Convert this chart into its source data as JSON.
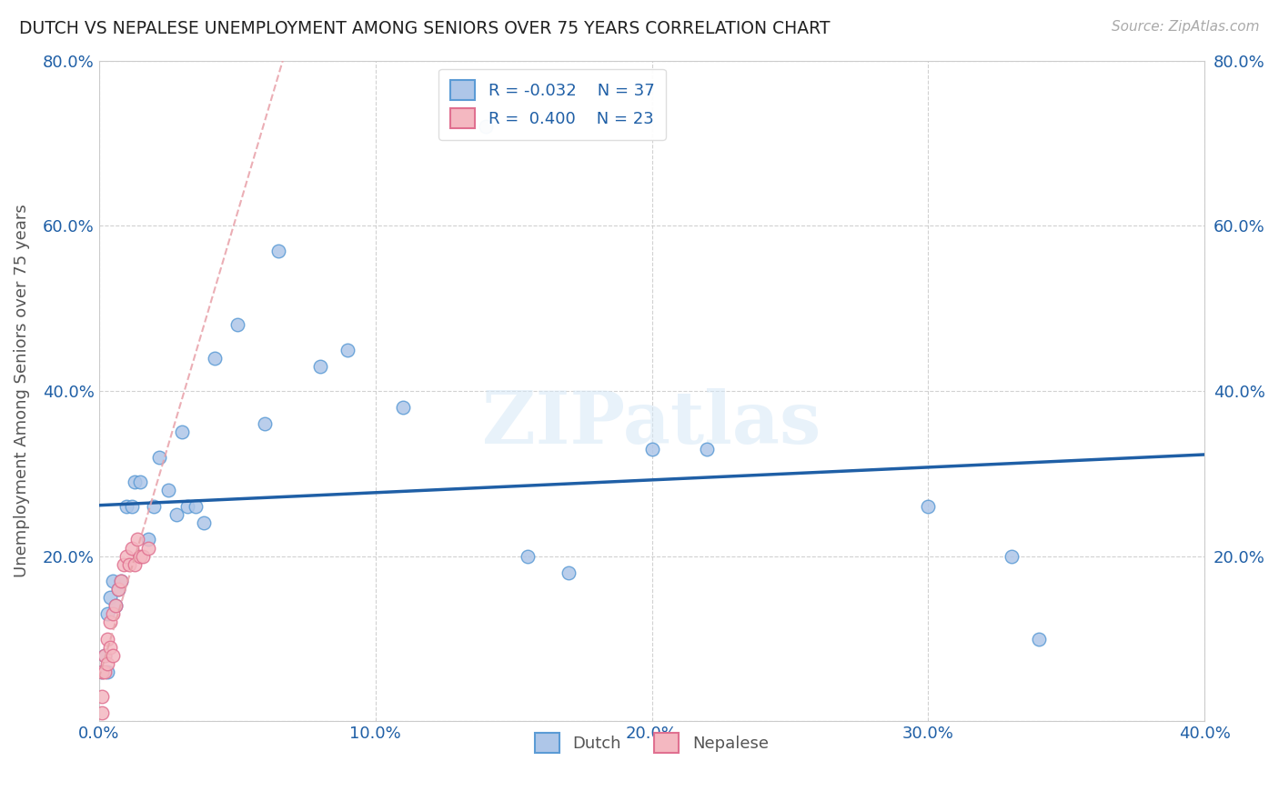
{
  "title": "DUTCH VS NEPALESE UNEMPLOYMENT AMONG SENIORS OVER 75 YEARS CORRELATION CHART",
  "source": "Source: ZipAtlas.com",
  "ylabel_label": "Unemployment Among Seniors over 75 years",
  "xlim": [
    0.0,
    0.4
  ],
  "ylim": [
    0.0,
    0.8
  ],
  "x_ticks": [
    0.0,
    0.1,
    0.2,
    0.3,
    0.4
  ],
  "x_tick_labels": [
    "0.0%",
    "10.0%",
    "20.0%",
    "30.0%",
    "40.0%"
  ],
  "y_ticks": [
    0.0,
    0.2,
    0.4,
    0.6,
    0.8
  ],
  "y_tick_labels": [
    "",
    "20.0%",
    "40.0%",
    "60.0%",
    "80.0%"
  ],
  "dutch_color": "#aec6e8",
  "nepalese_color": "#f4b8c1",
  "dutch_edge_color": "#5b9bd5",
  "nepalese_edge_color": "#e07090",
  "trend_dutch_color": "#1f5fa6",
  "trend_nepalese_color": "#e8a0a8",
  "legend_dutch_label": "Dutch",
  "legend_nepalese_label": "Nepalese",
  "dutch_R": -0.032,
  "dutch_N": 37,
  "nepalese_R": 0.4,
  "nepalese_N": 23,
  "dutch_x": [
    0.001,
    0.002,
    0.003,
    0.003,
    0.004,
    0.005,
    0.006,
    0.007,
    0.008,
    0.01,
    0.012,
    0.013,
    0.015,
    0.018,
    0.02,
    0.022,
    0.025,
    0.028,
    0.03,
    0.032,
    0.035,
    0.038,
    0.042,
    0.05,
    0.06,
    0.065,
    0.08,
    0.09,
    0.11,
    0.14,
    0.155,
    0.17,
    0.2,
    0.22,
    0.3,
    0.33,
    0.34
  ],
  "dutch_y": [
    0.06,
    0.08,
    0.06,
    0.13,
    0.15,
    0.17,
    0.14,
    0.16,
    0.17,
    0.26,
    0.26,
    0.29,
    0.29,
    0.22,
    0.26,
    0.32,
    0.28,
    0.25,
    0.35,
    0.26,
    0.26,
    0.24,
    0.44,
    0.48,
    0.36,
    0.57,
    0.43,
    0.45,
    0.38,
    0.72,
    0.2,
    0.18,
    0.33,
    0.33,
    0.26,
    0.2,
    0.1
  ],
  "nepalese_x": [
    0.001,
    0.001,
    0.001,
    0.002,
    0.002,
    0.003,
    0.003,
    0.004,
    0.004,
    0.005,
    0.005,
    0.006,
    0.007,
    0.008,
    0.009,
    0.01,
    0.011,
    0.012,
    0.013,
    0.014,
    0.015,
    0.016,
    0.018
  ],
  "nepalese_y": [
    0.01,
    0.03,
    0.06,
    0.06,
    0.08,
    0.07,
    0.1,
    0.09,
    0.12,
    0.08,
    0.13,
    0.14,
    0.16,
    0.17,
    0.19,
    0.2,
    0.19,
    0.21,
    0.19,
    0.22,
    0.2,
    0.2,
    0.21
  ],
  "background_color": "#ffffff",
  "grid_color": "#cccccc",
  "watermark_text": "ZIPatlas",
  "dot_size": 110
}
